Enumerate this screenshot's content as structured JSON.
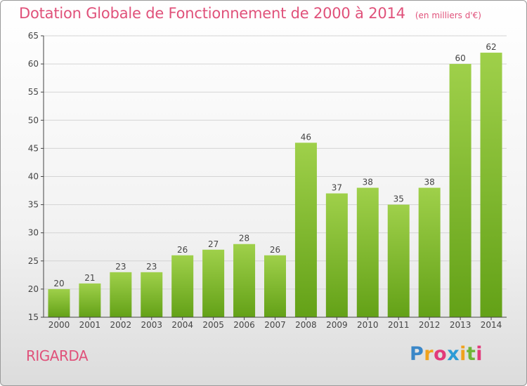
{
  "header": {
    "title": "Dotation Globale de Fonctionnement de 2000 à 2014",
    "unit": "(en milliers d'€)"
  },
  "footer": {
    "town": "RIGARDA",
    "logo_text": "Proxiti",
    "logo_letters": [
      "P",
      "r",
      "o",
      "x",
      "i",
      "t",
      "i"
    ]
  },
  "colors": {
    "title": "#e0517a",
    "bar_top": "#9fd04a",
    "bar_bottom": "#63a117",
    "grid": "#d4d4d4",
    "axis": "#444444"
  },
  "chart_data": {
    "type": "bar",
    "categories": [
      "2000",
      "2001",
      "2002",
      "2003",
      "2004",
      "2005",
      "2006",
      "2007",
      "2008",
      "2009",
      "2010",
      "2011",
      "2012",
      "2013",
      "2014"
    ],
    "values": [
      20,
      21,
      23,
      23,
      26,
      27,
      28,
      26,
      46,
      37,
      38,
      35,
      38,
      60,
      62
    ],
    "title": "Dotation Globale de Fonctionnement de 2000 à 2014",
    "ylabel": "",
    "xlabel": "",
    "ylim": [
      15,
      65
    ],
    "yticks": [
      15,
      20,
      25,
      30,
      35,
      40,
      45,
      50,
      55,
      60,
      65
    ],
    "grid": true,
    "data_labels": true
  }
}
